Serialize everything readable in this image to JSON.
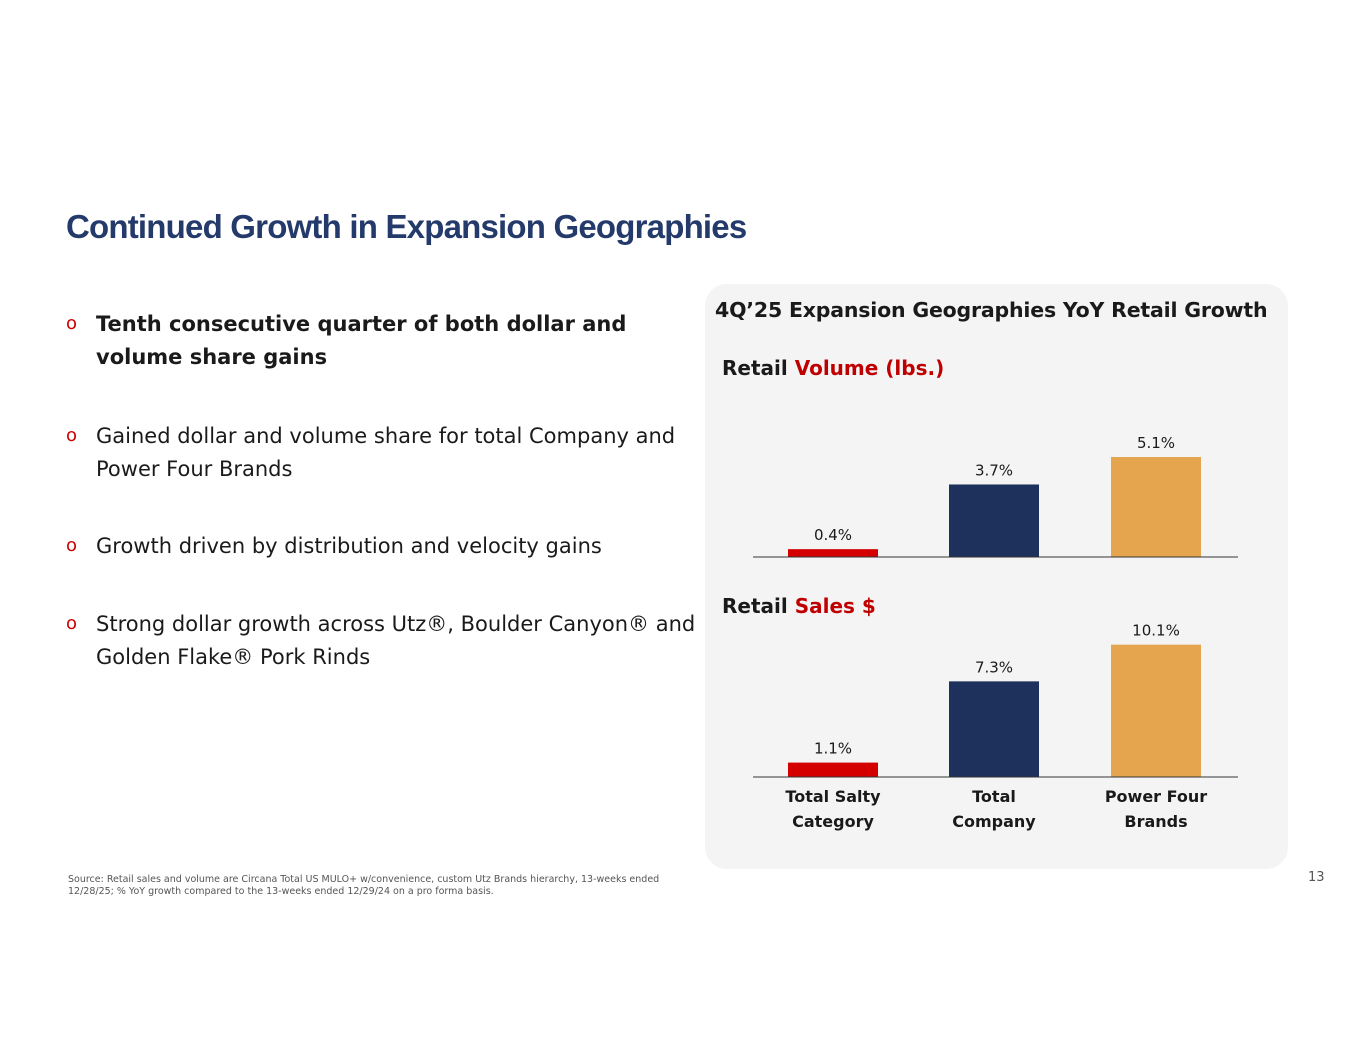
{
  "title": "Continued Growth in Expansion Geographies",
  "bullets": [
    {
      "marker": "o",
      "text": "Tenth consecutive quarter of both dollar and volume share gains",
      "bold": true
    },
    {
      "marker": "o",
      "text": "Gained dollar and volume share for total Company and Power Four Brands",
      "bold": false
    },
    {
      "marker": "o",
      "text": "Growth driven by distribution and velocity gains",
      "bold": false
    },
    {
      "marker": "o",
      "text": "Strong dollar growth across Utz®, Boulder Canyon® and Golden Flake® Pork Rinds",
      "bold": false
    }
  ],
  "panel": {
    "title": "4Q’25 Expansion Geographies YoY Retail Growth",
    "volume_heading": {
      "prefix": "Retail ",
      "accent": "Volume (lbs.)"
    },
    "sales_heading": {
      "prefix": "Retail ",
      "accent": "Sales $"
    }
  },
  "colors": {
    "accent_red": "#c00000",
    "bar_red": "#d40000",
    "bar_navy": "#1d315c",
    "bar_orange": "#e5a44e",
    "title_navy": "#243a6b"
  },
  "chart_data": [
    {
      "type": "bar",
      "title": "Retail Volume (lbs.)",
      "categories": [
        "Total Salty Category",
        "Total Company",
        "Power Four Brands"
      ],
      "values": [
        0.4,
        3.7,
        5.1
      ],
      "labels": [
        "0.4%",
        "3.7%",
        "5.1%"
      ],
      "colors": [
        "#d40000",
        "#1d315c",
        "#e5a44e"
      ],
      "ylabel": "",
      "xlabel": "",
      "grid": false
    },
    {
      "type": "bar",
      "title": "Retail Sales $",
      "categories": [
        "Total Salty Category",
        "Total Company",
        "Power Four Brands"
      ],
      "category_labels": [
        [
          "Total Salty",
          "Category"
        ],
        [
          "Total",
          "Company"
        ],
        [
          "Power Four",
          "Brands"
        ]
      ],
      "values": [
        1.1,
        7.3,
        10.1
      ],
      "labels": [
        "1.1%",
        "7.3%",
        "10.1%"
      ],
      "colors": [
        "#d40000",
        "#1d315c",
        "#e5a44e"
      ],
      "ylabel": "",
      "xlabel": "",
      "grid": false
    }
  ],
  "footer": {
    "source": "Source: Retail sales and volume are Circana Total US MULO+ w/convenience, custom Utz Brands hierarchy, 13-weeks ended 12/28/25; % YoY growth compared to the 13-weeks ended 12/29/24 on a pro forma basis.",
    "page_number": "13"
  }
}
